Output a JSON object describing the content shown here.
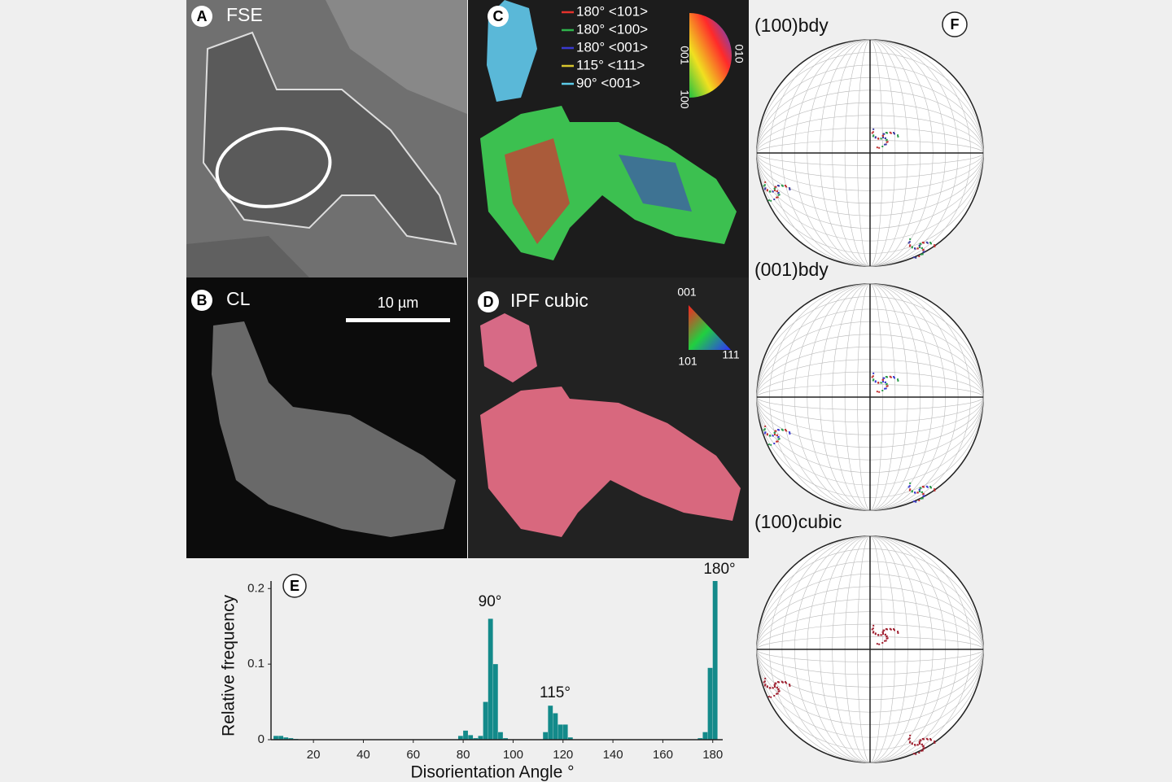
{
  "panels": {
    "a": {
      "letter": "A",
      "label": "FSE"
    },
    "b": {
      "letter": "B",
      "label": "CL",
      "scale_bar": "10 µm"
    },
    "c": {
      "letter": "C",
      "legend": [
        {
          "label": "180° <101>",
          "color": "#e5322c"
        },
        {
          "label": "180° <100>",
          "color": "#2fb34c"
        },
        {
          "label": "180° <001>",
          "color": "#3a3ad0"
        },
        {
          "label": "115° <111>",
          "color": "#d8c62e"
        },
        {
          "label": "90° <001>",
          "color": "#5ccbe8"
        }
      ],
      "key_labels": [
        "001",
        "010",
        "100"
      ]
    },
    "d": {
      "letter": "D",
      "label": "IPF cubic",
      "key_labels": [
        "001",
        "101",
        "111"
      ]
    },
    "f": {
      "letter": "F",
      "stereonets": [
        "(100)bdy",
        "(001)bdy",
        "(100)cubic"
      ]
    }
  },
  "chart_data": {
    "type": "histogram",
    "panel_letter": "E",
    "xlabel": "Disorientation Angle °",
    "ylabel": "Relative frequency",
    "bins": [
      4,
      6,
      8,
      10,
      12,
      14,
      16,
      18,
      20,
      22,
      24,
      26,
      28,
      30,
      32,
      34,
      36,
      38,
      40,
      42,
      44,
      46,
      48,
      50,
      52,
      54,
      56,
      58,
      60,
      62,
      64,
      66,
      68,
      70,
      72,
      74,
      76,
      78,
      80,
      82,
      84,
      86,
      88,
      90,
      92,
      94,
      96,
      98,
      100,
      102,
      104,
      106,
      108,
      110,
      112,
      114,
      116,
      118,
      120,
      122,
      124,
      126,
      128,
      130,
      132,
      134,
      136,
      138,
      140,
      142,
      144,
      146,
      148,
      150,
      152,
      154,
      156,
      158,
      160,
      162,
      164,
      166,
      168,
      170,
      172,
      174,
      176,
      178,
      180,
      182
    ],
    "counts": [
      0.005,
      0.005,
      0.003,
      0.002,
      0.001,
      0,
      0,
      0,
      0,
      0,
      0,
      0,
      0,
      0,
      0,
      0,
      0,
      0,
      0,
      0,
      0,
      0,
      0,
      0,
      0,
      0,
      0,
      0,
      0,
      0,
      0,
      0,
      0,
      0,
      0,
      0,
      0,
      0.005,
      0.012,
      0.006,
      0.002,
      0.005,
      0.05,
      0.16,
      0.1,
      0.01,
      0.002,
      0,
      0,
      0,
      0,
      0,
      0,
      0,
      0.01,
      0.045,
      0.035,
      0.02,
      0.02,
      0.003,
      0,
      0,
      0,
      0,
      0,
      0,
      0,
      0,
      0,
      0,
      0,
      0,
      0,
      0,
      0,
      0,
      0,
      0,
      0,
      0,
      0,
      0,
      0,
      0,
      0,
      0.002,
      0.01,
      0.095,
      0.21
    ],
    "color": "#138a8a",
    "xlim": [
      3,
      184
    ],
    "ylim": [
      0,
      0.21
    ],
    "xticks": [
      20,
      40,
      60,
      80,
      100,
      120,
      140,
      160,
      180
    ],
    "yticks": [
      0,
      0.1,
      0.2
    ],
    "annotations": [
      "90°",
      "115°",
      "180°"
    ]
  }
}
